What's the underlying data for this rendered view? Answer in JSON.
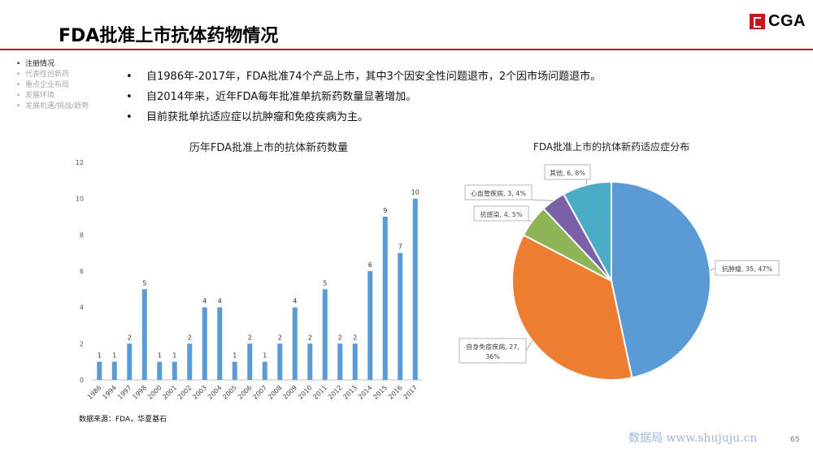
{
  "page": {
    "title": "FDA批准上市抗体药物情况",
    "logo_text": "CGA",
    "source_note": "数据来源：FDA，华夏基石",
    "watermark": "数据局 www.shujuju.cn",
    "page_number": "65"
  },
  "side_nav": {
    "items": [
      {
        "label": "注册情况",
        "active": true
      },
      {
        "label": "代表性创新药",
        "active": false
      },
      {
        "label": "重点企业布局",
        "active": false
      },
      {
        "label": "发展环境",
        "active": false
      },
      {
        "label": "发展机遇/挑战/趋势",
        "active": false
      }
    ]
  },
  "bullets": [
    "自1986年-2017年，FDA批准74个产品上市，其中3个因安全性问题退市，2个因市场问题退市。",
    "自2014年来，近年FDA每年批准单抗新药数量显著增加。",
    "目前获批单抗适应症以抗肿瘤和免疫疾病为主。"
  ],
  "colors": {
    "title_rule": "#b41f24",
    "bar": "#5b9bd5",
    "pie": [
      "#5b9bd5",
      "#ed7d31",
      "#8fb357",
      "#7a60a8",
      "#4bacc6"
    ]
  },
  "chart_data": [
    {
      "type": "bar",
      "title": "历年FDA批准上市的抗体新药数量",
      "categories": [
        "1986",
        "1994",
        "1997",
        "1998",
        "2000",
        "2001",
        "2002",
        "2003",
        "2004",
        "2005",
        "2006",
        "2007",
        "2008",
        "2009",
        "2010",
        "2011",
        "2012",
        "2013",
        "2014",
        "2015",
        "2016",
        "2017"
      ],
      "values": [
        1,
        1,
        2,
        5,
        1,
        1,
        2,
        4,
        4,
        1,
        2,
        1,
        2,
        4,
        2,
        5,
        2,
        2,
        6,
        9,
        7,
        10
      ],
      "ylim": [
        0,
        12
      ],
      "yticks": [
        0,
        2,
        4,
        6,
        8,
        10,
        12
      ],
      "grid": false,
      "data_labels": true
    },
    {
      "type": "pie",
      "title": "FDA批准上市的抗体新药适应症分布",
      "slices": [
        {
          "label": "抗肿瘤, 35, 47%",
          "name": "抗肿瘤",
          "value": 35
        },
        {
          "label": "自身免疫疾病, 27, 36%",
          "name": "自身免疫疾病",
          "value": 27
        },
        {
          "label": "抗感染, 4, 5%",
          "name": "抗感染",
          "value": 4
        },
        {
          "label": "心血管疾病, 3, 4%",
          "name": "心血管疾病",
          "value": 3
        },
        {
          "label": "其他, 6, 8%",
          "name": "其他",
          "value": 6
        }
      ]
    }
  ]
}
